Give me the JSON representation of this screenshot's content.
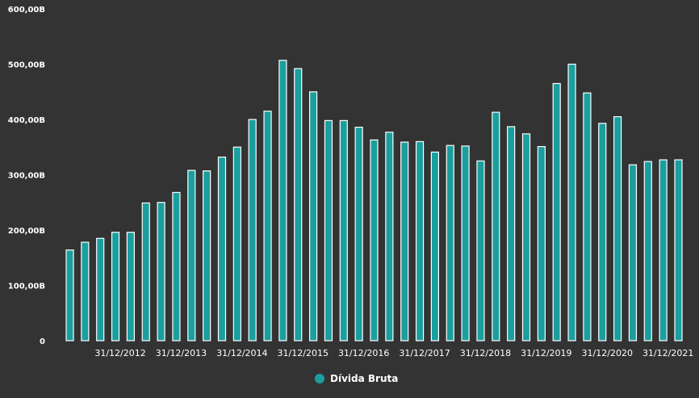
{
  "colors": {
    "background": "#333333",
    "bar_fill": "#1b9e9e",
    "bar_stroke": "#ffffff",
    "text": "#ffffff"
  },
  "chart_data": {
    "type": "bar",
    "title": "",
    "xlabel": "",
    "ylabel": "",
    "ylim": [
      0,
      600
    ],
    "y_ticks": [
      "0",
      "100,00B",
      "200,00B",
      "300,00B",
      "400,00B",
      "500,00B",
      "600,00B"
    ],
    "x_tick_labels": [
      {
        "label": "31/12/2012",
        "index": 3
      },
      {
        "label": "31/12/2013",
        "index": 7
      },
      {
        "label": "31/12/2014",
        "index": 11
      },
      {
        "label": "31/12/2015",
        "index": 15
      },
      {
        "label": "31/12/2016",
        "index": 19
      },
      {
        "label": "31/12/2017",
        "index": 23
      },
      {
        "label": "31/12/2018",
        "index": 27
      },
      {
        "label": "31/12/2019",
        "index": 31
      },
      {
        "label": "31/12/2020",
        "index": 35
      },
      {
        "label": "31/12/2021",
        "index": 39
      }
    ],
    "grid": false,
    "legend_position": "bottom-center",
    "series": [
      {
        "name": "Dívida Bruta",
        "values": [
          164,
          178,
          185,
          196,
          196,
          249,
          250,
          268,
          308,
          307,
          332,
          350,
          400,
          415,
          507,
          492,
          450,
          398,
          398,
          386,
          363,
          377,
          359,
          360,
          341,
          353,
          352,
          325,
          413,
          387,
          374,
          351,
          465,
          500,
          448,
          393,
          405,
          318,
          324,
          327,
          327
        ]
      }
    ]
  }
}
